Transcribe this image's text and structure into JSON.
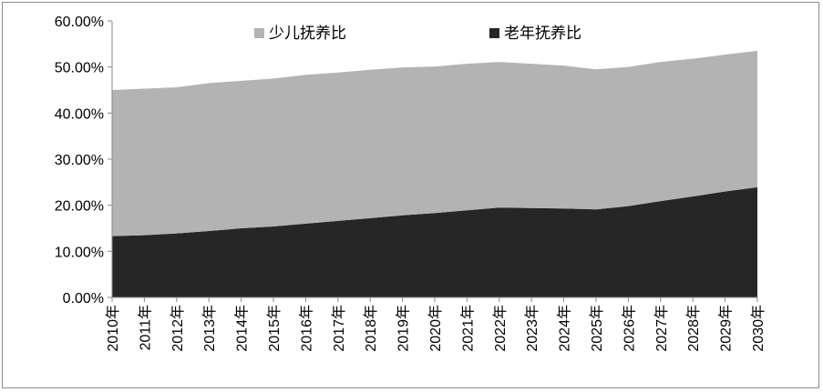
{
  "chart_data": {
    "type": "area",
    "stacked": true,
    "categories": [
      "2010年",
      "2011年",
      "2012年",
      "2013年",
      "2014年",
      "2015年",
      "2016年",
      "2017年",
      "2018年",
      "2019年",
      "2020年",
      "2021年",
      "2022年",
      "2023年",
      "2024年",
      "2025年",
      "2026年",
      "2027年",
      "2028年",
      "2029年",
      "2030年"
    ],
    "series": [
      {
        "name": "老年抚养比",
        "color": "#262626",
        "values": [
          13.3,
          13.5,
          13.9,
          14.4,
          15.0,
          15.4,
          16.0,
          16.6,
          17.2,
          17.8,
          18.3,
          18.9,
          19.5,
          19.4,
          19.3,
          19.1,
          19.8,
          20.9,
          21.9,
          23.0,
          23.9
        ]
      },
      {
        "name": "少儿抚养比",
        "color": "#b3b3b3",
        "values": [
          31.7,
          31.8,
          31.7,
          32.1,
          32.0,
          32.1,
          32.3,
          32.2,
          32.2,
          32.1,
          31.8,
          31.8,
          31.6,
          31.3,
          31.0,
          30.4,
          30.2,
          30.2,
          29.9,
          29.7,
          29.6
        ]
      }
    ],
    "y_ticks": [
      "0.00%",
      "10.00%",
      "20.00%",
      "30.00%",
      "40.00%",
      "50.00%",
      "60.00%"
    ],
    "ylim": [
      0,
      60
    ],
    "legend": {
      "position": "top",
      "items": [
        {
          "label": "少儿抚养比",
          "color": "#b3b3b3"
        },
        {
          "label": "老年抚养比",
          "color": "#262626"
        }
      ]
    },
    "grid": false
  }
}
